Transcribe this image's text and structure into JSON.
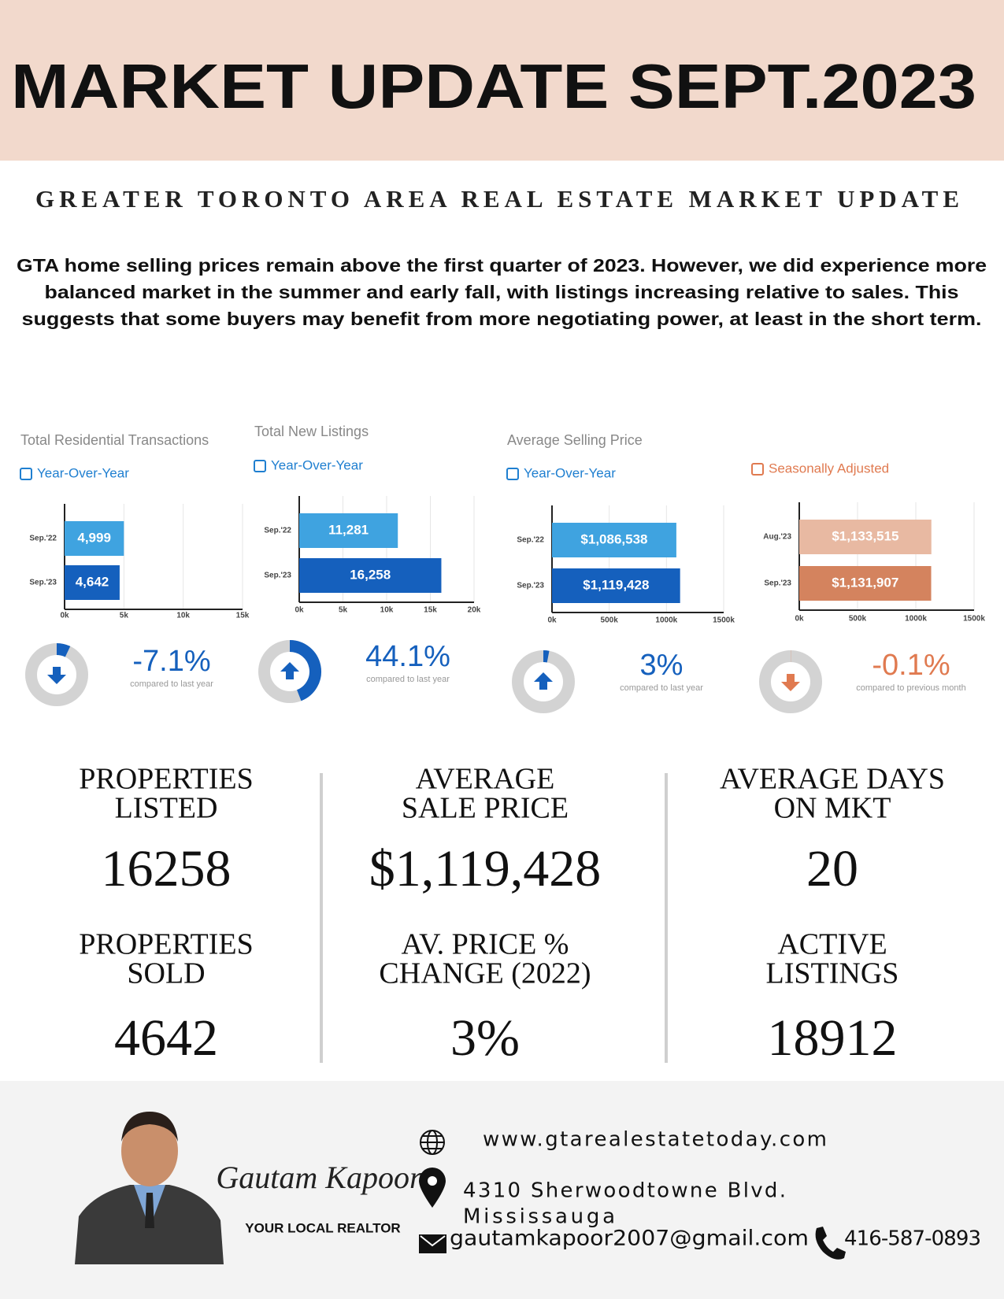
{
  "header": {
    "title": "MARKET UPDATE SEPT.2023",
    "subtitle": "GREATER TORONTO AREA REAL ESTATE MARKET UPDATE"
  },
  "intro": [
    "GTA home selling prices remain above the first quarter of 2023. However, we did experience more",
    "balanced market in the summer and early fall, with listings increasing relative to sales. This",
    "suggests that some buyers may benefit from more negotiating power, at least in the short term."
  ],
  "chart_data": [
    {
      "type": "bar",
      "title": "Total Residential Transactions",
      "subtitle": "Year-Over-Year",
      "categories": [
        "Sep.'22",
        "Sep.'23"
      ],
      "values": [
        4999,
        4642
      ],
      "value_labels": [
        "4,999",
        "4,642"
      ],
      "colors": [
        "#3fa3e0",
        "#1560bd"
      ],
      "xlim": [
        0,
        15000
      ],
      "xticks": [
        {
          "value": 0,
          "label": "0k"
        },
        {
          "value": 5000,
          "label": "5k"
        },
        {
          "value": 10000,
          "label": "10k"
        },
        {
          "value": 15000,
          "label": "15k"
        }
      ],
      "change": -7.1,
      "change_label": "-7.1%",
      "change_note": "compared to last year",
      "change_color": "#1560bd"
    },
    {
      "type": "bar",
      "title": "Total New Listings",
      "subtitle": "Year-Over-Year",
      "categories": [
        "Sep.'22",
        "Sep.'23"
      ],
      "values": [
        11281,
        16258
      ],
      "value_labels": [
        "11,281",
        "16,258"
      ],
      "colors": [
        "#3fa3e0",
        "#1560bd"
      ],
      "xlim": [
        0,
        20000
      ],
      "xticks": [
        {
          "value": 0,
          "label": "0k"
        },
        {
          "value": 5000,
          "label": "5k"
        },
        {
          "value": 10000,
          "label": "10k"
        },
        {
          "value": 15000,
          "label": "15k"
        },
        {
          "value": 20000,
          "label": "20k"
        }
      ],
      "change": 44.1,
      "change_label": "44.1%",
      "change_note": "compared to last year",
      "change_color": "#1560bd"
    },
    {
      "type": "bar",
      "title": "Average Selling Price",
      "subtitle": "Year-Over-Year",
      "categories": [
        "Sep.'22",
        "Sep.'23"
      ],
      "values": [
        1086538,
        1119428
      ],
      "value_labels": [
        "$1,086,538",
        "$1,119,428"
      ],
      "colors": [
        "#3fa3e0",
        "#1560bd"
      ],
      "xlim": [
        0,
        1500000
      ],
      "xticks": [
        {
          "value": 0,
          "label": "0k"
        },
        {
          "value": 500000,
          "label": "500k"
        },
        {
          "value": 1000000,
          "label": "1000k"
        },
        {
          "value": 1500000,
          "label": "1500k"
        }
      ],
      "change": 3,
      "change_label": "3%",
      "change_note": "compared to last year",
      "change_color": "#1560bd"
    },
    {
      "type": "bar",
      "subtitle": "Seasonally Adjusted",
      "categories": [
        "Aug.'23",
        "Sep.'23"
      ],
      "values": [
        1133515,
        1131907
      ],
      "value_labels": [
        "$1,133,515",
        "$1,131,907"
      ],
      "colors": [
        "#e8b9a2",
        "#d4835e"
      ],
      "xlim": [
        0,
        1500000
      ],
      "xticks": [
        {
          "value": 0,
          "label": "0k"
        },
        {
          "value": 500000,
          "label": "500k"
        },
        {
          "value": 1000000,
          "label": "1000k"
        },
        {
          "value": 1500000,
          "label": "1500k"
        }
      ],
      "change": -0.1,
      "change_label": "-0.1%",
      "change_note": "compared to previous month",
      "change_color": "#e07a50"
    }
  ],
  "stats": [
    {
      "label": [
        "PROPERTIES",
        "LISTED"
      ],
      "value": "16258"
    },
    {
      "label": [
        "AVERAGE",
        "SALE PRICE"
      ],
      "value": "$1,119,428"
    },
    {
      "label": [
        "AVERAGE DAYS",
        "ON MKT"
      ],
      "value": "20"
    },
    {
      "label": [
        "PROPERTIES",
        "SOLD"
      ],
      "value": "4642"
    },
    {
      "label": [
        "AV. PRICE %",
        "CHANGE (2022)"
      ],
      "value": "3%"
    },
    {
      "label": [
        "ACTIVE",
        "LISTINGS"
      ],
      "value": "18912"
    }
  ],
  "footer": {
    "name": "Gautam Kapoor",
    "tagline": "YOUR LOCAL REALTOR",
    "website": "www.gtarealestatetoday.com",
    "address": [
      "4310 Sherwoodtowne Blvd.",
      "Mississauga"
    ],
    "email": "gautamkapoor2007@gmail.com",
    "phone": "416-587-0893"
  }
}
